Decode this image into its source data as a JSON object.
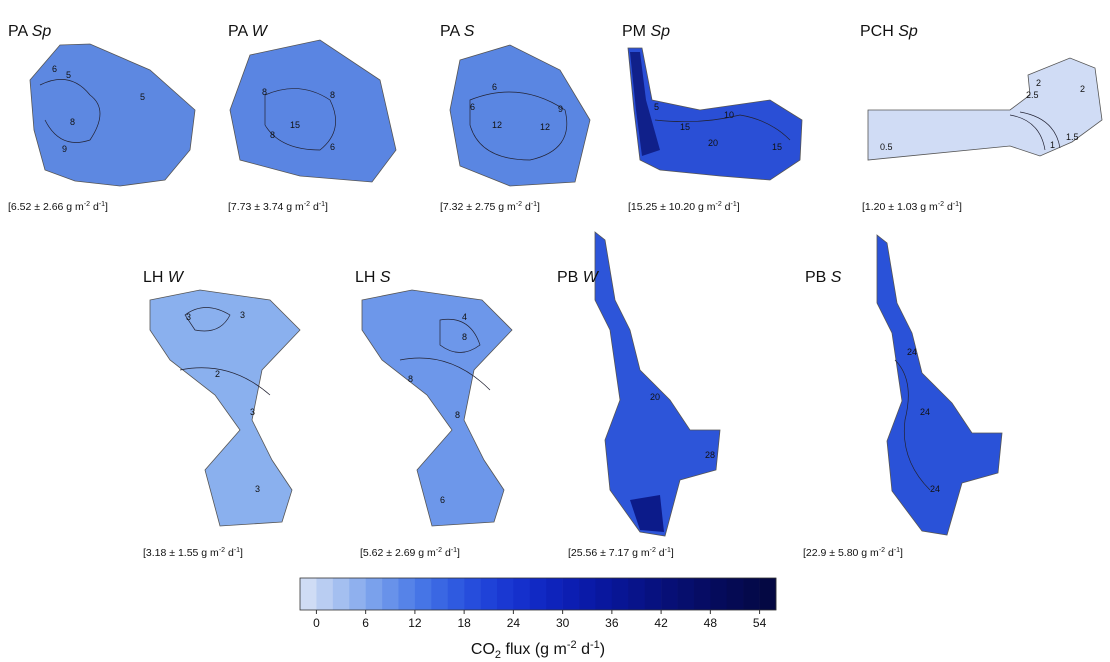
{
  "panels": [
    {
      "site": "PA",
      "season": "Sp",
      "flux": [
        "[6.52 ± 2.66 g m",
        "-2",
        " d",
        "-1",
        "]"
      ],
      "contour_labels": [
        "6",
        "5",
        "5",
        "8",
        "9"
      ]
    },
    {
      "site": "PA",
      "season": "W",
      "flux": [
        "[7.73 ± 3.74 g m",
        "-2",
        " d",
        "-1",
        "]"
      ],
      "contour_labels": [
        "8",
        "8",
        "15",
        "8",
        "6"
      ]
    },
    {
      "site": "PA",
      "season": "S",
      "flux": [
        "[7.32 ± 2.75 g m",
        "-2",
        " d",
        "-1",
        "]"
      ],
      "contour_labels": [
        "6",
        "6",
        "12",
        "12",
        "9"
      ]
    },
    {
      "site": "PM",
      "season": "Sp",
      "flux": [
        "[15.25 ± 10.20 g m",
        "-2",
        " d",
        "-1",
        "]"
      ],
      "contour_labels": [
        "5",
        "15",
        "20",
        "10",
        "15"
      ]
    },
    {
      "site": "PCH",
      "season": "Sp",
      "flux": [
        "[1.20 ± 1.03 g m",
        "-2",
        " d",
        "-1",
        "]"
      ],
      "contour_labels": [
        "2",
        "2.5",
        "0.5",
        "1",
        "1.5",
        "2"
      ]
    },
    {
      "site": "LH",
      "season": "W",
      "flux": [
        "[3.18 ± 1.55 g m",
        "-2",
        " d",
        "-1",
        "]"
      ],
      "contour_labels": [
        "3",
        "3",
        "2",
        "3",
        "3"
      ]
    },
    {
      "site": "LH",
      "season": "S",
      "flux": [
        "[5.62 ± 2.69 g m",
        "-2",
        " d",
        "-1",
        "]"
      ],
      "contour_labels": [
        "4",
        "8",
        "8",
        "8",
        "6"
      ]
    },
    {
      "site": "PB",
      "season": "W",
      "flux": [
        "[25.56 ± 7.17 g m",
        "-2",
        " d",
        "-1",
        "]"
      ],
      "contour_labels": [
        "20",
        "28"
      ]
    },
    {
      "site": "PB",
      "season": "S",
      "flux": [
        "[22.9 ± 5.80 g m",
        "-2",
        " d",
        "-1",
        "]"
      ],
      "contour_labels": [
        "24",
        "24",
        "24"
      ]
    }
  ],
  "colorbar": {
    "title": [
      "CO",
      "2",
      " flux (g m",
      "-2",
      " d",
      "-1",
      ")"
    ],
    "lim": [
      -2,
      56
    ],
    "ticks": [
      0,
      6,
      12,
      18,
      24,
      30,
      36,
      42,
      48,
      54
    ],
    "colors": [
      "#cfdcf5",
      "#b9cdf2",
      "#a4bff0",
      "#8fb0ee",
      "#7aa1ec",
      "#6892ea",
      "#5683e8",
      "#4675e6",
      "#3a67e3",
      "#2f5ae0",
      "#264ddc",
      "#1f42d8",
      "#1a38d2",
      "#1530cc",
      "#1129c4",
      "#0e23bb",
      "#0c1eb2",
      "#0a1aa8",
      "#09179e",
      "#081594",
      "#08138a",
      "#071180",
      "#070f76",
      "#060e6d",
      "#060c64",
      "#050b5b",
      "#050a53",
      "#04094b",
      "#040843"
    ]
  }
}
